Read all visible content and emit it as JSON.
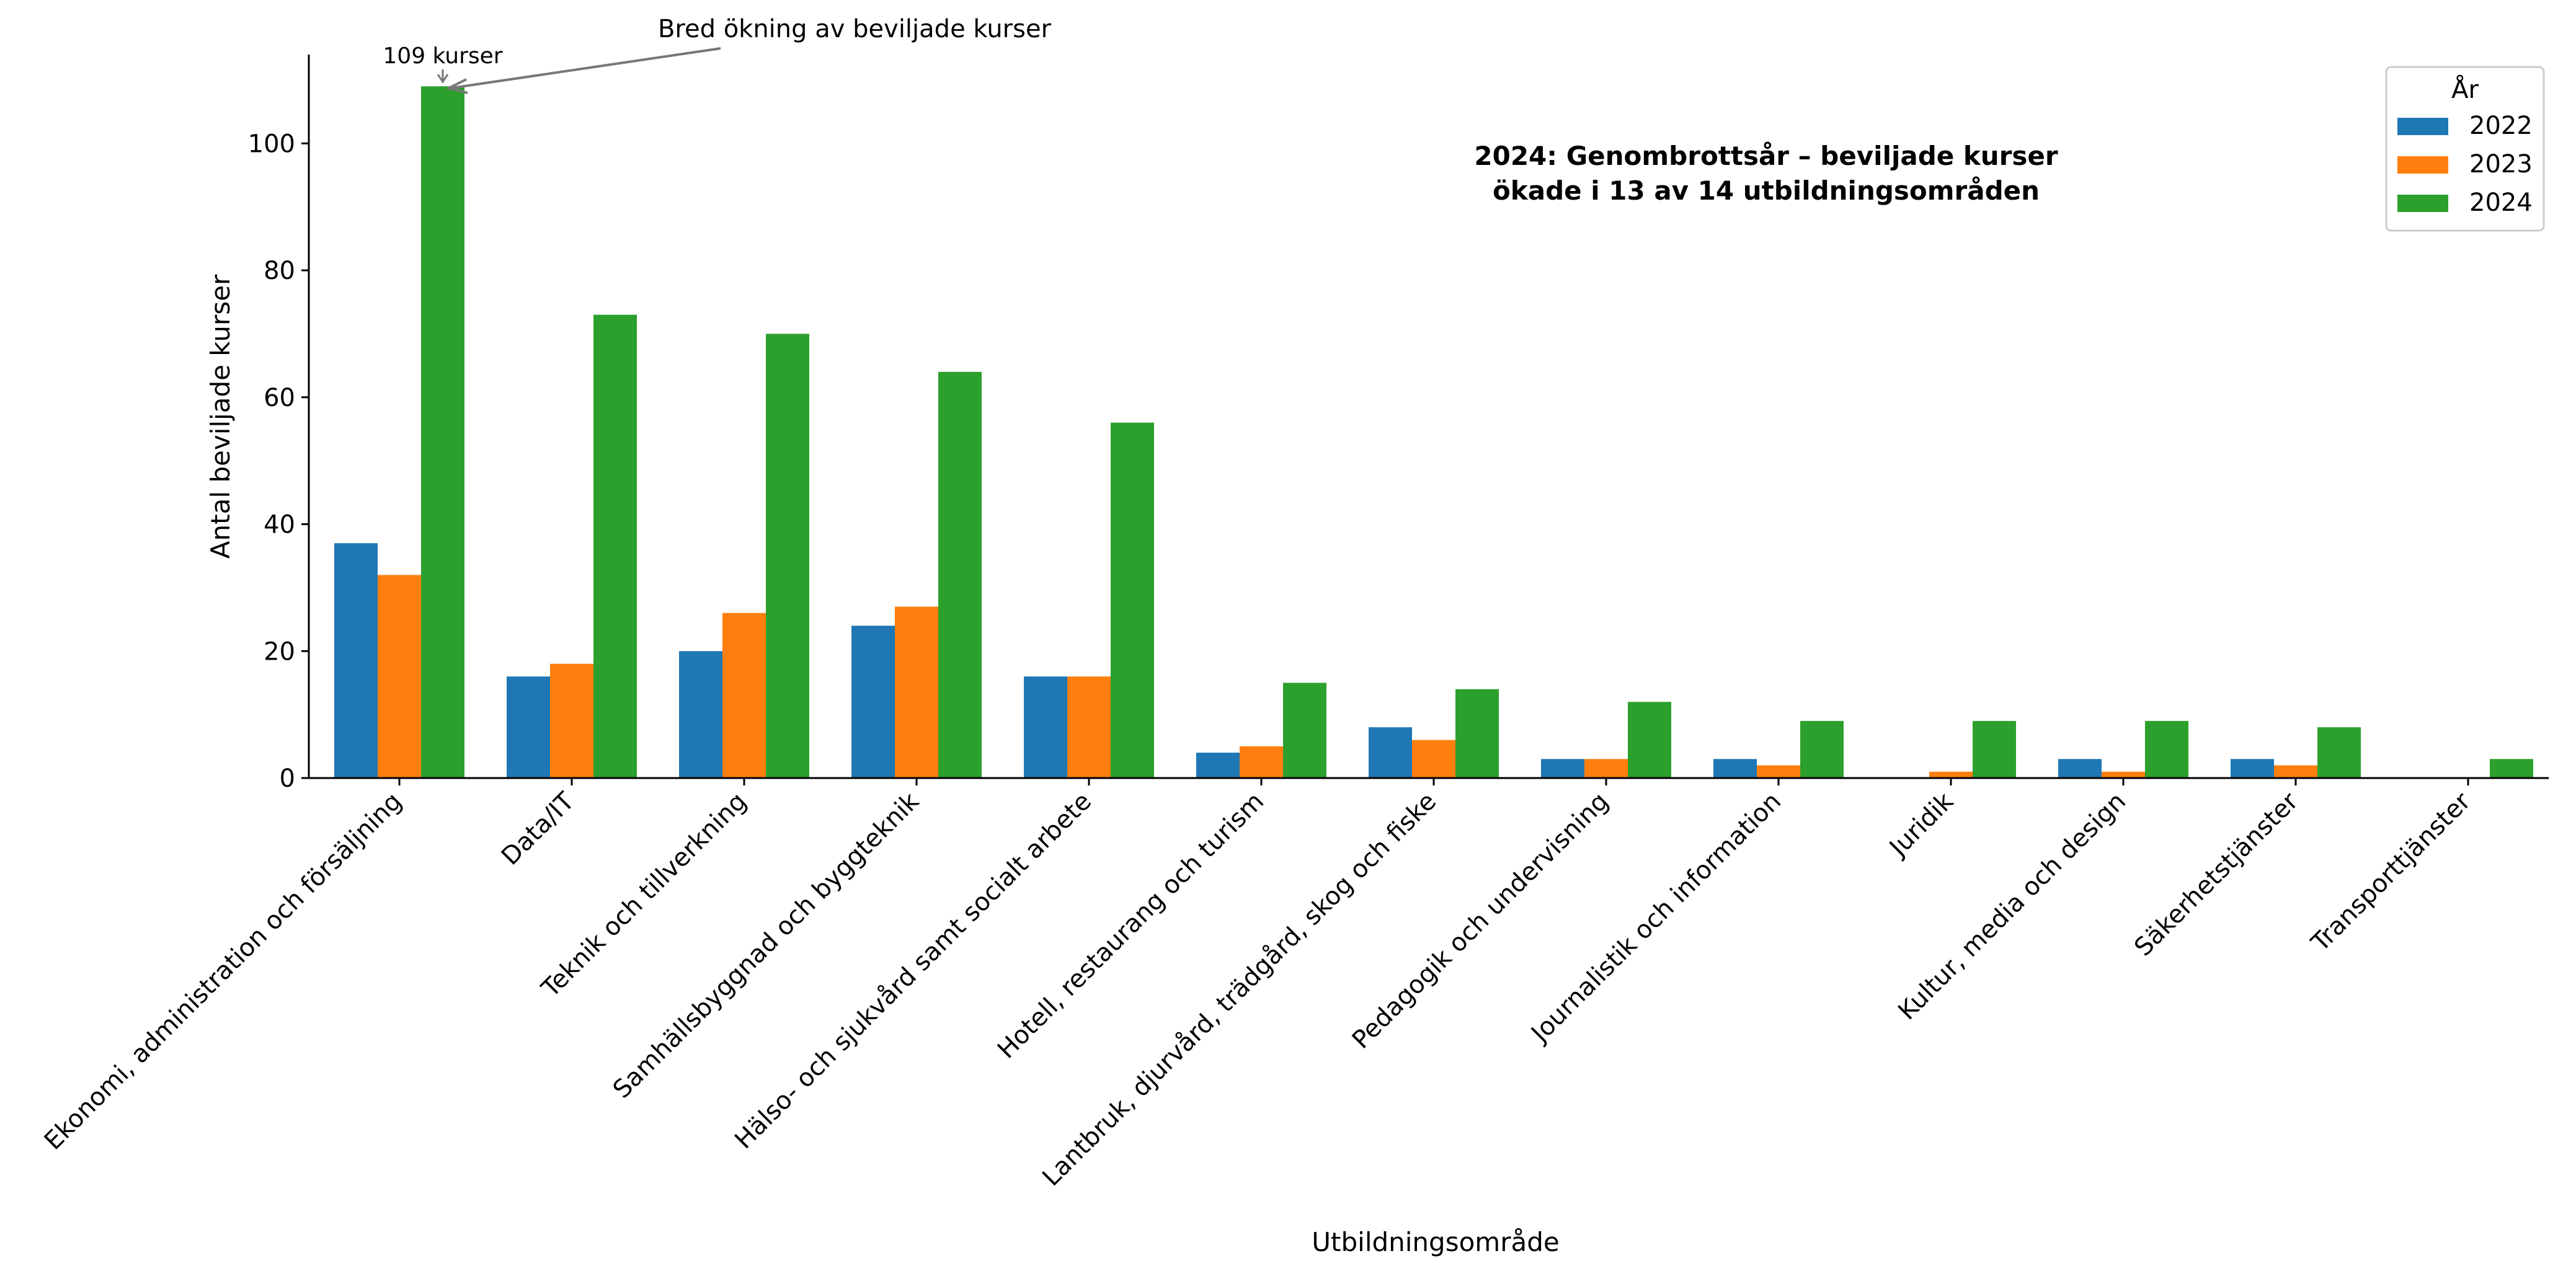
{
  "chart_data": {
    "type": "bar",
    "xlabel": "Utbildningsområde",
    "ylabel": "Antal beviljade kurser",
    "ylim": [
      0,
      114
    ],
    "yticks": [
      0,
      20,
      40,
      60,
      80,
      100
    ],
    "categories": [
      "Ekonomi, administration och försäljning",
      "Data/IT",
      "Teknik och tillverkning",
      "Samhällsbyggnad och byggteknik",
      "Hälso- och sjukvård samt socialt arbete",
      "Hotell, restaurang och turism",
      "Lantbruk, djurvård, trädgård, skog och fiske",
      "Pedagogik och undervisning",
      "Journalistik och information",
      "Juridik",
      "Kultur, media och design",
      "Säkerhetstjänster",
      "Transporttjänster"
    ],
    "series": [
      {
        "name": "2022",
        "color": "#1f77b4",
        "values": [
          37,
          16,
          20,
          24,
          16,
          4,
          8,
          3,
          3,
          0,
          3,
          3,
          0
        ]
      },
      {
        "name": "2023",
        "color": "#ff7f0e",
        "values": [
          32,
          18,
          26,
          27,
          16,
          5,
          6,
          3,
          2,
          1,
          1,
          2,
          0
        ]
      },
      {
        "name": "2024",
        "color": "#2ca02c",
        "values": [
          109,
          73,
          70,
          64,
          56,
          15,
          14,
          12,
          9,
          9,
          9,
          8,
          3
        ]
      }
    ],
    "legend": {
      "title": "År",
      "position": "top-right"
    },
    "grid": false,
    "annotations": {
      "text_box_lines": [
        "2024: Genombrottsår – beviljade kurser",
        "ökade i 13 av 14 utbildningsområden"
      ],
      "arrow_label": "Bred ökning av beviljade kurser",
      "peak_label": "109 kurser"
    }
  }
}
